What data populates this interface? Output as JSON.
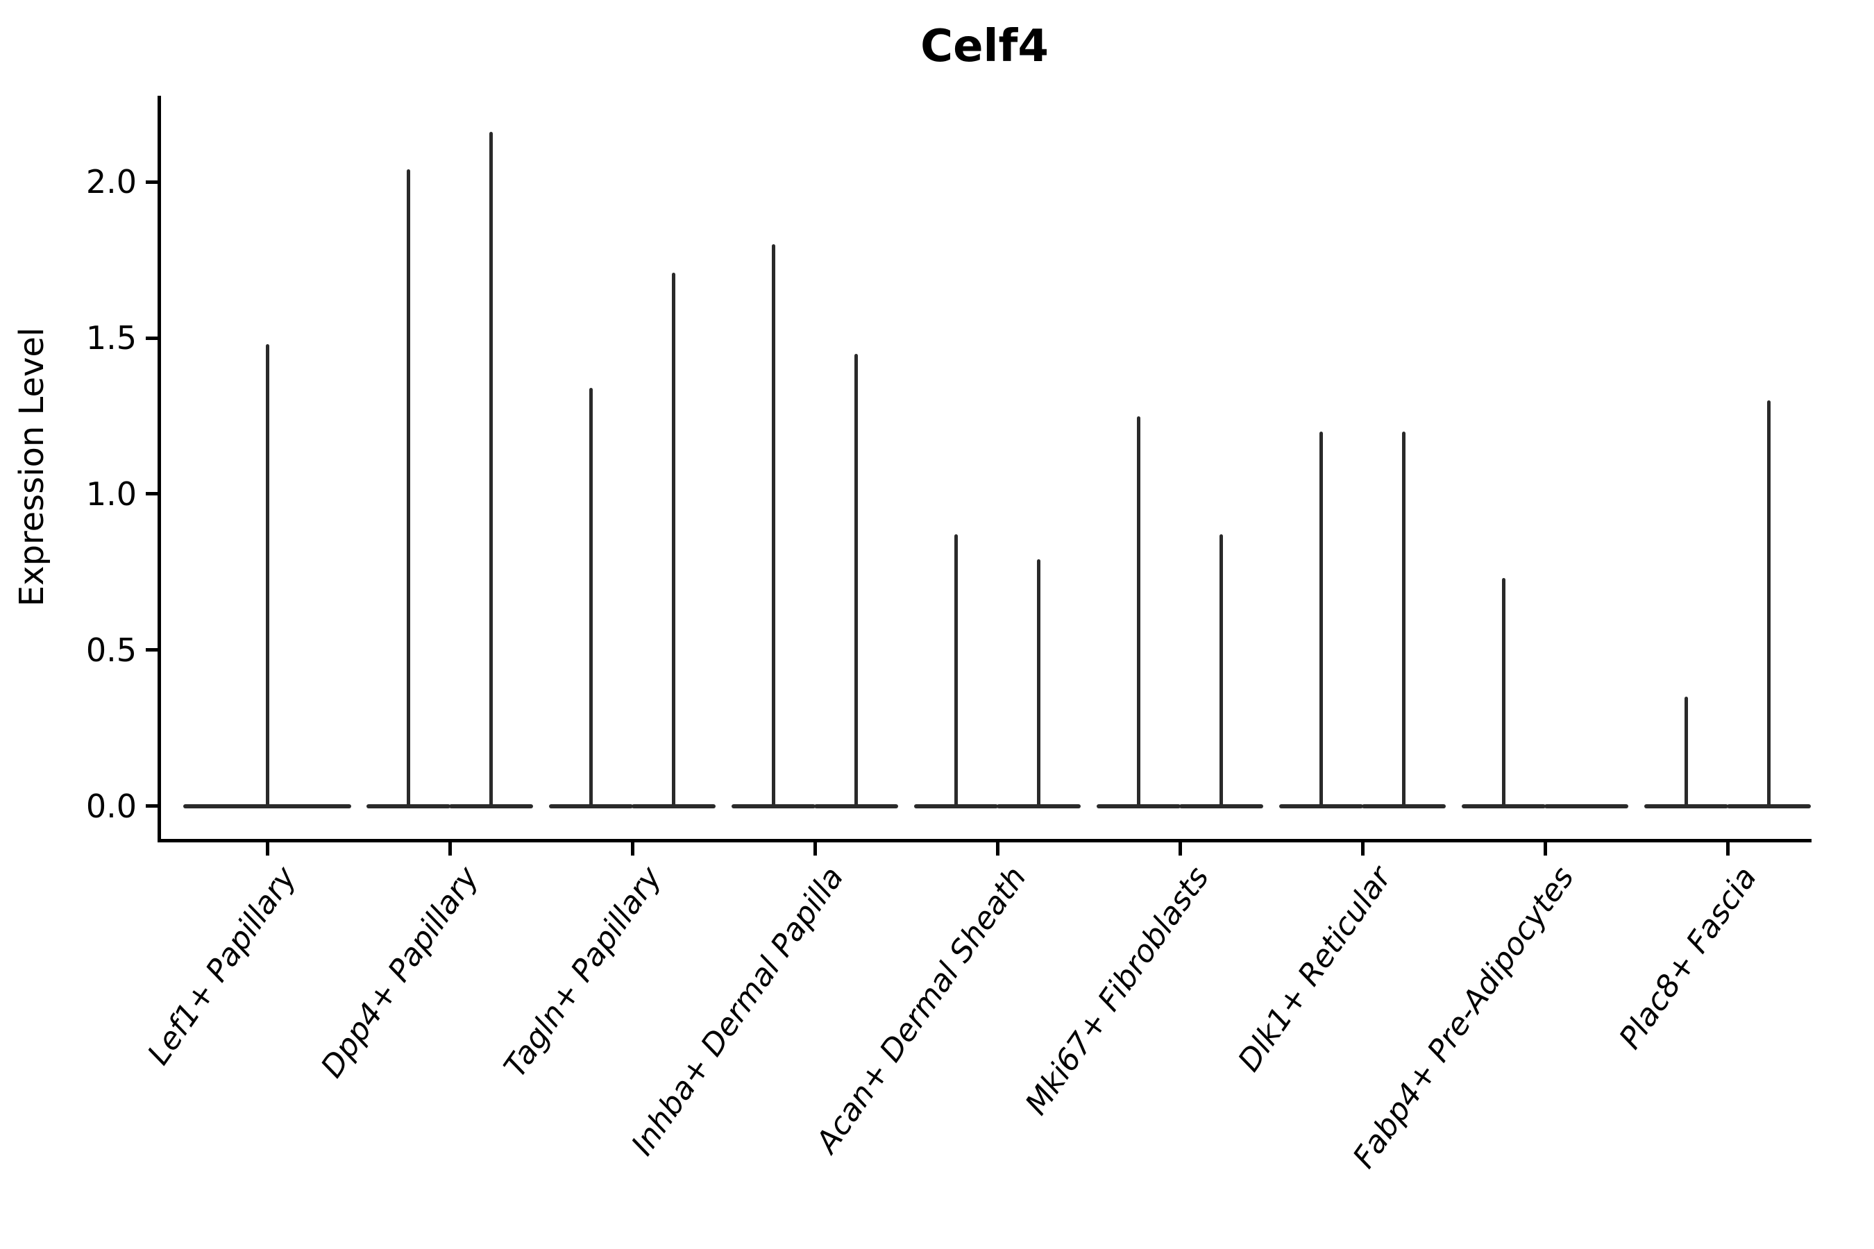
{
  "title": "Celf4",
  "chart_data": {
    "type": "violin",
    "title": "Celf4",
    "xlabel": "",
    "ylabel": "Expression Level",
    "ylim": [
      -0.105,
      2.276
    ],
    "yticks": [
      0.0,
      0.5,
      1.0,
      1.5,
      2.0
    ],
    "ytick_labels": [
      "0.0",
      "0.5",
      "1.0",
      "1.5",
      "2.0"
    ],
    "grid": false,
    "legend": null,
    "violin_color": "#2a2a2a",
    "axis_color": "#000000",
    "categories": [
      "Lef1+ Papillary",
      "Dpp4+ Papillary",
      "Tagln+ Papillary",
      "Inhba+ Dermal Papilla",
      "Acan+ Dermal Sheath",
      "Mki67+ Fibroblasts",
      "Dlk1+ Reticular",
      "Fabp4+ Pre-Adipocytes",
      "Plac8+ Fascia"
    ],
    "series": [
      {
        "category": "Lef1+ Papillary",
        "violins": [
          {
            "offset": 0.0,
            "width": 0.92,
            "max": 1.48
          }
        ]
      },
      {
        "category": "Dpp4+ Papillary",
        "violins": [
          {
            "offset": -0.225,
            "width": 0.46,
            "max": 2.04
          },
          {
            "offset": 0.225,
            "width": 0.46,
            "max": 2.16
          }
        ]
      },
      {
        "category": "Tagln+ Papillary",
        "violins": [
          {
            "offset": -0.225,
            "width": 0.46,
            "max": 1.34
          },
          {
            "offset": 0.225,
            "width": 0.46,
            "max": 1.71
          }
        ]
      },
      {
        "category": "Inhba+ Dermal Papilla",
        "violins": [
          {
            "offset": -0.225,
            "width": 0.46,
            "max": 1.8
          },
          {
            "offset": 0.225,
            "width": 0.46,
            "max": 1.45
          }
        ]
      },
      {
        "category": "Acan+ Dermal Sheath",
        "violins": [
          {
            "offset": -0.225,
            "width": 0.46,
            "max": 0.87
          },
          {
            "offset": 0.225,
            "width": 0.46,
            "max": 0.79
          }
        ]
      },
      {
        "category": "Mki67+ Fibroblasts",
        "violins": [
          {
            "offset": -0.225,
            "width": 0.46,
            "max": 1.25
          },
          {
            "offset": 0.225,
            "width": 0.46,
            "max": 0.87
          }
        ]
      },
      {
        "category": "Dlk1+ Reticular",
        "violins": [
          {
            "offset": -0.225,
            "width": 0.46,
            "max": 1.2
          },
          {
            "offset": 0.225,
            "width": 0.46,
            "max": 1.2
          }
        ]
      },
      {
        "category": "Fabp4+ Pre-Adipocytes",
        "violins": [
          {
            "offset": -0.225,
            "width": 0.46,
            "max": 0.73
          },
          {
            "offset": 0.225,
            "width": 0.46,
            "max": 0.0
          }
        ]
      },
      {
        "category": "Plac8+ Fascia",
        "violins": [
          {
            "offset": -0.225,
            "width": 0.46,
            "max": 0.35
          },
          {
            "offset": 0.225,
            "width": 0.46,
            "max": 1.3
          }
        ]
      }
    ]
  }
}
